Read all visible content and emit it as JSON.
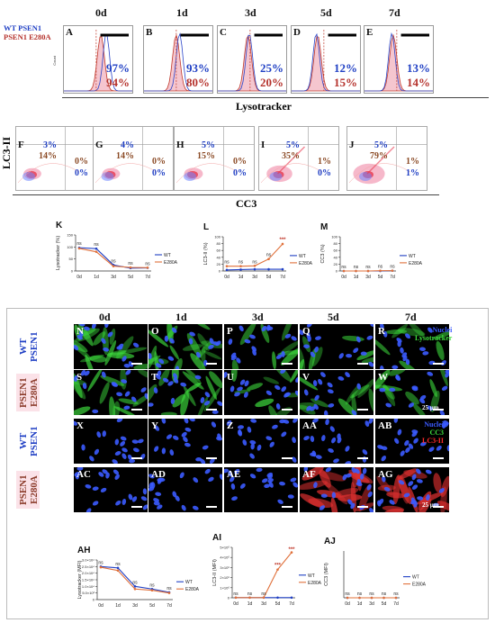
{
  "legend_top": {
    "wt": "WT PSEN1",
    "mut": "PSEN1 E280A"
  },
  "days": [
    "0d",
    "1d",
    "3d",
    "5d",
    "7d"
  ],
  "flow_y_label": "Count",
  "flow_x_label": "Lysotracker",
  "hist_panels": [
    {
      "letter": "A",
      "wt": "97%",
      "mut": "94%"
    },
    {
      "letter": "B",
      "wt": "93%",
      "mut": "80%"
    },
    {
      "letter": "C",
      "wt": "25%",
      "mut": "20%"
    },
    {
      "letter": "D",
      "wt": "12%",
      "mut": "15%"
    },
    {
      "letter": "E",
      "wt": "13%",
      "mut": "14%"
    }
  ],
  "scatter_y_label": "LC3-II",
  "scatter_x_label": "CC3",
  "scatter_panels": [
    {
      "letter": "F",
      "tl_wt": "3%",
      "tl_mut": "14%",
      "tr_mut": "0%",
      "br_wt": "0%"
    },
    {
      "letter": "G",
      "tl_wt": "4%",
      "tl_mut": "14%",
      "tr_mut": "0%",
      "br_wt": "0%"
    },
    {
      "letter": "H",
      "tl_wt": "5%",
      "tl_mut": "15%",
      "tr_mut": "0%",
      "br_wt": "0%"
    },
    {
      "letter": "I",
      "tl_wt": "5%",
      "tl_mut": "35%",
      "tr_mut": "1%",
      "br_wt": "0%"
    },
    {
      "letter": "J",
      "tl_wt": "5%",
      "tl_mut": "79%",
      "tr_mut": "1%",
      "br_wt": "1%"
    }
  ],
  "colors": {
    "wt": "#1f3fc4",
    "mut": "#e0703a",
    "mut_label": "#b5322c",
    "nuclei": "#3b5bff",
    "lyso": "#3ddc3d",
    "lc3": "#ff2a2a"
  },
  "chart_data": [
    {
      "letter": "K",
      "type": "line",
      "ylabel": "Lysotracker (%)",
      "categories": [
        "0d",
        "1d",
        "3d",
        "5d",
        "7d"
      ],
      "ylim": [
        0,
        150
      ],
      "yticks": [
        "0",
        "50",
        "100",
        "150"
      ],
      "series": [
        {
          "name": "WT",
          "values": [
            97,
            93,
            25,
            12,
            13
          ]
        },
        {
          "name": "E280A",
          "values": [
            94,
            80,
            20,
            15,
            14
          ]
        }
      ],
      "annotations": [
        "ns",
        "ns",
        "ns",
        "ns",
        "ns"
      ]
    },
    {
      "letter": "L",
      "type": "line",
      "ylabel": "LC3-II (%)",
      "categories": [
        "0d",
        "1d",
        "3d",
        "5d",
        "7d"
      ],
      "ylim": [
        0,
        100
      ],
      "yticks": [
        "0",
        "20",
        "40",
        "60",
        "80",
        "100"
      ],
      "series": [
        {
          "name": "WT",
          "values": [
            3,
            4,
            5,
            5,
            5
          ]
        },
        {
          "name": "E280A",
          "values": [
            14,
            14,
            15,
            35,
            79
          ]
        }
      ],
      "annotations": [
        "ns",
        "ns",
        "ns",
        "ns",
        "***"
      ]
    },
    {
      "letter": "M",
      "type": "line",
      "ylabel": "CC3 (%)",
      "categories": [
        "0d",
        "1d",
        "3d",
        "5d",
        "7d"
      ],
      "ylim": [
        0,
        100
      ],
      "yticks": [
        "0",
        "20",
        "40",
        "60",
        "80",
        "100"
      ],
      "series": [
        {
          "name": "WT",
          "values": [
            0,
            0,
            0,
            0,
            1
          ]
        },
        {
          "name": "E280A",
          "values": [
            0,
            0,
            0,
            1,
            1
          ]
        }
      ],
      "annotations": [
        "ns",
        "ns",
        "ns",
        "ns",
        "ns"
      ]
    },
    {
      "letter": "AH",
      "type": "line",
      "ylabel": "Lysotracker (MFI)",
      "categories": [
        "0d",
        "1d",
        "3d",
        "5d",
        "7d"
      ],
      "ylim": [
        0,
        30000
      ],
      "yticks": [
        "0",
        "5.0×10³",
        "1.0×10⁴",
        "1.5×10⁴",
        "2.0×10⁴",
        "2.5×10⁴",
        "3.0×10⁴"
      ],
      "series": [
        {
          "name": "WT",
          "values": [
            25000,
            24000,
            10000,
            8000,
            5500
          ]
        },
        {
          "name": "E280A",
          "values": [
            24500,
            22000,
            8000,
            7000,
            5000
          ]
        }
      ],
      "annotations": [
        "ns",
        "ns",
        "ns",
        "ns",
        "ns"
      ]
    },
    {
      "letter": "AI",
      "type": "line",
      "ylabel": "LC3-II (MFI)",
      "categories": [
        "0d",
        "1d",
        "3d",
        "5d",
        "7d"
      ],
      "ylim": [
        0,
        5000000
      ],
      "yticks": [
        "0",
        "1×10⁶",
        "2×10⁶",
        "3×10⁶",
        "4×10⁶",
        "5×10⁶"
      ],
      "series": [
        {
          "name": "WT",
          "values": [
            20000,
            20000,
            20000,
            20000,
            20000
          ]
        },
        {
          "name": "E280A",
          "values": [
            20000,
            20000,
            20000,
            2800000,
            4500000
          ]
        }
      ],
      "annotations": [
        "ns",
        "ns",
        "ns",
        "***",
        "***"
      ]
    },
    {
      "letter": "AJ",
      "type": "line",
      "ylabel": "CC3 (MFI)",
      "categories": [
        "0d",
        "1d",
        "3d",
        "5d",
        "7d"
      ],
      "ylim": [
        0,
        100
      ],
      "yticks": [],
      "series": [
        {
          "name": "WT",
          "values": [
            0,
            0,
            0,
            0,
            0
          ]
        },
        {
          "name": "E280A",
          "values": [
            0,
            0,
            0,
            0,
            0
          ]
        }
      ],
      "annotations": [
        "ns",
        "ns",
        "ns",
        "ns",
        "ns"
      ]
    }
  ],
  "micro": {
    "days": [
      "0d",
      "1d",
      "3d",
      "5d",
      "7d"
    ],
    "row_labels": [
      {
        "l1": "WT",
        "l2": "PSEN1"
      },
      {
        "l1": "PSEN1",
        "l2": "E280A"
      },
      {
        "l1": "WT",
        "l2": "PSEN1"
      },
      {
        "l1": "PSEN1",
        "l2": "E280A"
      }
    ],
    "rows": [
      [
        "N",
        "O",
        "P",
        "Q",
        "R"
      ],
      [
        "S",
        "T",
        "U",
        "V",
        "W"
      ],
      [
        "X",
        "Y",
        "Z",
        "AA",
        "AB"
      ],
      [
        "AC",
        "AD",
        "AE",
        "AF",
        "AG"
      ]
    ],
    "legend1": {
      "a": "Nuclei",
      "b": "Lysotracker"
    },
    "legend2": {
      "a": "Nuclei",
      "b": "CC3",
      "c": "LC3-II"
    },
    "scale": "25 µm"
  }
}
